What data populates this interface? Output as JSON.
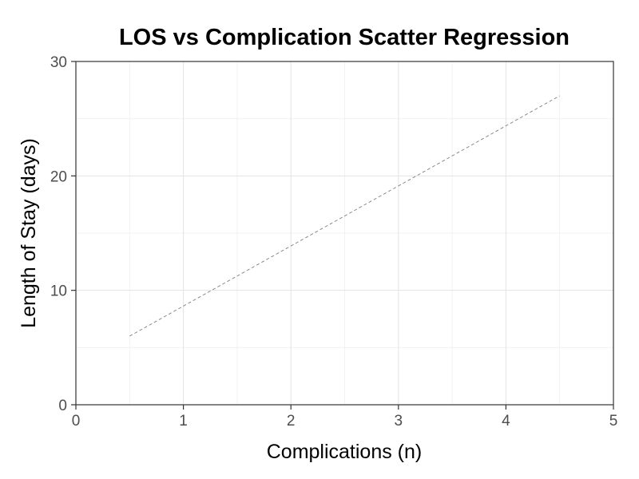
{
  "chart_data": {
    "type": "scatter",
    "title": "LOS vs Complication Scatter Regression",
    "xlabel": "Complications (n)",
    "ylabel": "Length of Stay (days)",
    "xlim": [
      0,
      5
    ],
    "ylim": [
      0,
      30
    ],
    "x_ticks": [
      0,
      1,
      2,
      3,
      4,
      5
    ],
    "y_ticks": [
      0,
      10,
      20,
      30
    ],
    "x_tick_labels": [
      "0",
      "1",
      "2",
      "3",
      "4",
      "5"
    ],
    "y_tick_labels": [
      "0",
      "10",
      "20",
      "30"
    ],
    "grid": true,
    "points": [],
    "regression_line": {
      "style": "dashed",
      "color": "#7f7f7f",
      "x": [
        0.5,
        4.5
      ],
      "y": [
        6,
        27
      ]
    }
  }
}
